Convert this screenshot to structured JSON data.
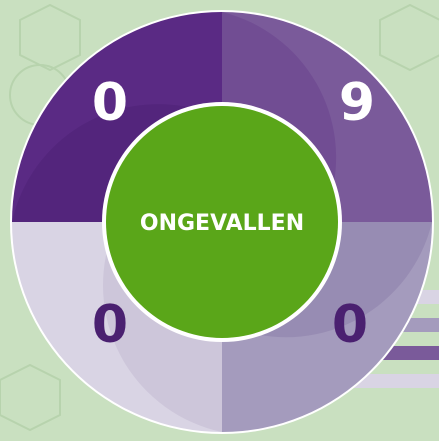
{
  "center_label": "ONGEVALLEN",
  "digits": [
    "0",
    "9",
    "0",
    "0"
  ]
}
